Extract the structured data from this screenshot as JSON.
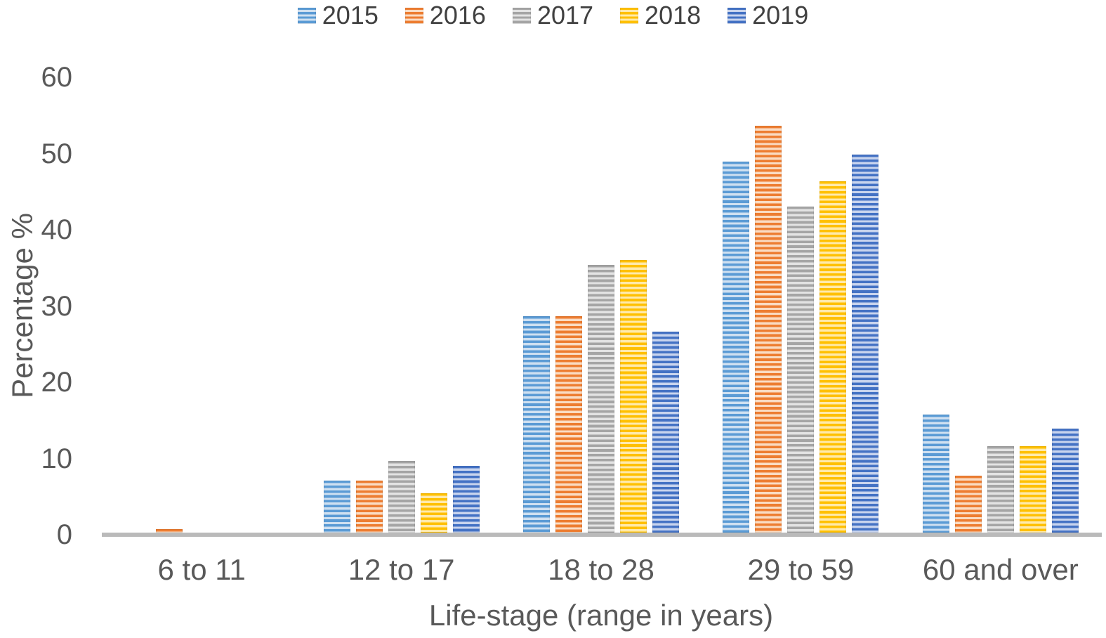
{
  "chart_data": {
    "type": "bar",
    "title": "",
    "xlabel": "Life-stage (range in years)",
    "ylabel": "Percentage %",
    "ylim": [
      0,
      60
    ],
    "yticks": [
      0,
      10,
      20,
      30,
      40,
      50,
      60
    ],
    "grid": false,
    "legend_position": "top-center",
    "bar_pattern": "horizontal-stripes",
    "categories": [
      "6 to 11",
      "12 to 17",
      "18 to 28",
      "29 to 59",
      "60 and over"
    ],
    "series": [
      {
        "name": "2015",
        "color": "#5B9BD5",
        "color_light": "#cfe0f1",
        "values": [
          0,
          6.8,
          28.4,
          48.7,
          15.5
        ]
      },
      {
        "name": "2016",
        "color": "#ED7D31",
        "color_light": "#fadcc3",
        "values": [
          0.5,
          6.8,
          28.4,
          53.4,
          7.5
        ]
      },
      {
        "name": "2017",
        "color": "#A5A5A5",
        "color_light": "#e3e3e3",
        "values": [
          0,
          9.4,
          35.1,
          42.8,
          11.3
        ]
      },
      {
        "name": "2018",
        "color": "#FFC000",
        "color_light": "#ffeaaa",
        "values": [
          0,
          5.2,
          35.8,
          46.1,
          11.3
        ]
      },
      {
        "name": "2019",
        "color": "#4472C4",
        "color_light": "#c8d4ee",
        "values": [
          0,
          8.8,
          26.4,
          49.6,
          13.6
        ]
      }
    ],
    "axis_color": "#bababa",
    "text_color": "#595959"
  }
}
